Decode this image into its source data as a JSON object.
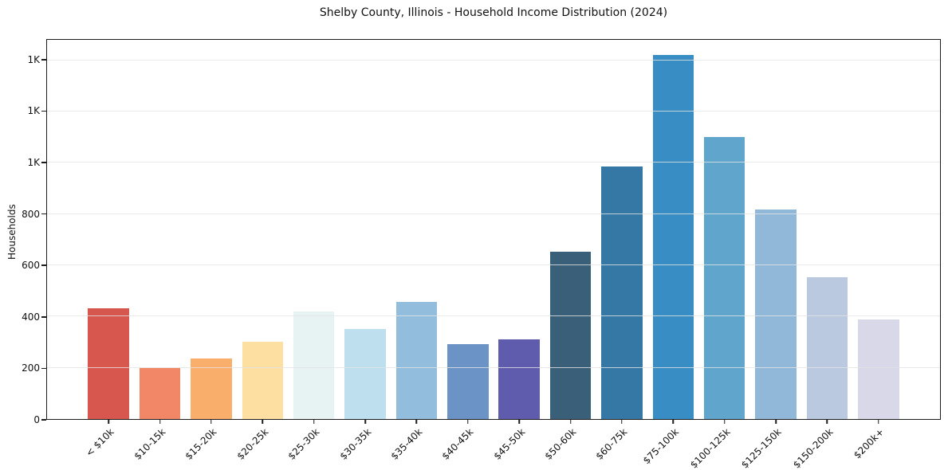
{
  "chart_data": {
    "type": "bar",
    "title": "Shelby County, Illinois - Household Income Distribution (2024)",
    "xlabel": "",
    "ylabel": "Households",
    "categories": [
      "< $10k",
      "$10-15k",
      "$15-20k",
      "$20-25k",
      "$25-30k",
      "$30-35k",
      "$35-40k",
      "$40-45k",
      "$45-50k",
      "$50-60k",
      "$60-75k",
      "$75-100k",
      "$100-125k",
      "$125-150k",
      "$150-200k",
      "$200k+"
    ],
    "values": [
      431,
      199,
      237,
      303,
      419,
      352,
      458,
      291,
      311,
      654,
      985,
      1421,
      1100,
      818,
      553,
      388
    ],
    "bar_colors": [
      "#d7574f",
      "#f28767",
      "#f9ae6b",
      "#fde0a1",
      "#e7f2f3",
      "#bedfee",
      "#93bddc",
      "#6c93c5",
      "#5f5cae",
      "#3a5f78",
      "#3578a5",
      "#388dc4",
      "#60a5cc",
      "#91b8d9",
      "#bac9df",
      "#d8d8e8"
    ],
    "ylim": [
      0,
      1480
    ],
    "yticks": {
      "values": [
        0,
        200,
        400,
        600,
        800,
        1000,
        1200,
        1400
      ],
      "labels": [
        "0",
        "200",
        "400",
        "600",
        "800",
        "1K",
        "1K",
        "1K"
      ]
    },
    "grid": true,
    "grid_axis": "y",
    "legend": null,
    "bar_alpha_note": "gridlines drawn faintly above bars",
    "background": "#ffffff"
  }
}
